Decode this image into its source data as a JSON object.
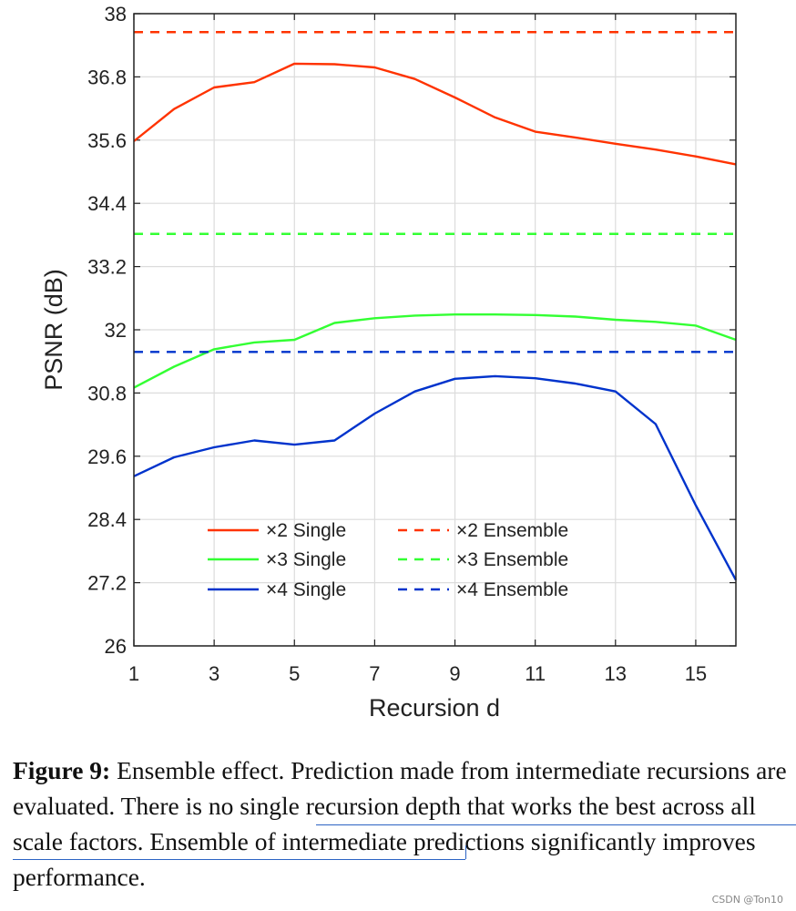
{
  "chart_data": {
    "type": "line",
    "xlabel": "Recursion d",
    "ylabel": "PSNR (dB)",
    "xlim": [
      1,
      16
    ],
    "ylim": [
      26,
      38
    ],
    "xticks": [
      1,
      3,
      5,
      7,
      9,
      11,
      13,
      15
    ],
    "xtick_labels": [
      "1",
      "3",
      "5",
      "7",
      "9",
      "11",
      "13",
      "15"
    ],
    "yticks": [
      26,
      27.2,
      28.4,
      29.6,
      30.8,
      32,
      33.2,
      34.4,
      35.6,
      36.8,
      38
    ],
    "ytick_labels": [
      "26",
      "27.2",
      "28.4",
      "29.6",
      "30.8",
      "32",
      "33.2",
      "34.4",
      "35.6",
      "36.8",
      "38"
    ],
    "grid": true,
    "legend_position": "bottom-center",
    "x": [
      1,
      2,
      3,
      4,
      5,
      6,
      7,
      8,
      9,
      10,
      11,
      12,
      13,
      14,
      15,
      16
    ],
    "series": [
      {
        "name": "×2 Single",
        "style": "solid",
        "color": "#ff3300",
        "values": [
          35.58,
          36.19,
          36.6,
          36.7,
          37.05,
          37.04,
          36.98,
          36.76,
          36.41,
          36.03,
          35.76,
          35.65,
          35.53,
          35.42,
          35.29,
          35.14
        ]
      },
      {
        "name": "×3 Single",
        "style": "solid",
        "color": "#33ff33",
        "values": [
          30.9,
          31.3,
          31.63,
          31.76,
          31.81,
          32.13,
          32.22,
          32.27,
          32.29,
          32.29,
          32.28,
          32.25,
          32.19,
          32.15,
          32.08,
          31.81
        ]
      },
      {
        "name": "×4 Single",
        "style": "solid",
        "color": "#0033cc",
        "values": [
          29.22,
          29.58,
          29.77,
          29.9,
          29.82,
          29.9,
          30.41,
          30.83,
          31.07,
          31.12,
          31.08,
          30.98,
          30.83,
          30.21,
          28.67,
          27.25
        ]
      },
      {
        "name": "×2 Ensemble",
        "style": "dashed",
        "color": "#ff3300",
        "constant": 37.65
      },
      {
        "name": "×3 Ensemble",
        "style": "dashed",
        "color": "#33ff33",
        "constant": 33.82
      },
      {
        "name": "×4 Ensemble",
        "style": "dashed",
        "color": "#0033cc",
        "constant": 31.58
      }
    ]
  },
  "caption": {
    "label": "Figure 9:",
    "text_part1": " Ensemble effect.  Prediction made from intermediate recursions are evaluated. ",
    "text_highlight": "There is no single recursion depth that works the best across all scale factors.",
    "text_part2": " Ensemble of intermediate predictions significantly improves performance."
  },
  "watermark": "CSDN @Ton10"
}
